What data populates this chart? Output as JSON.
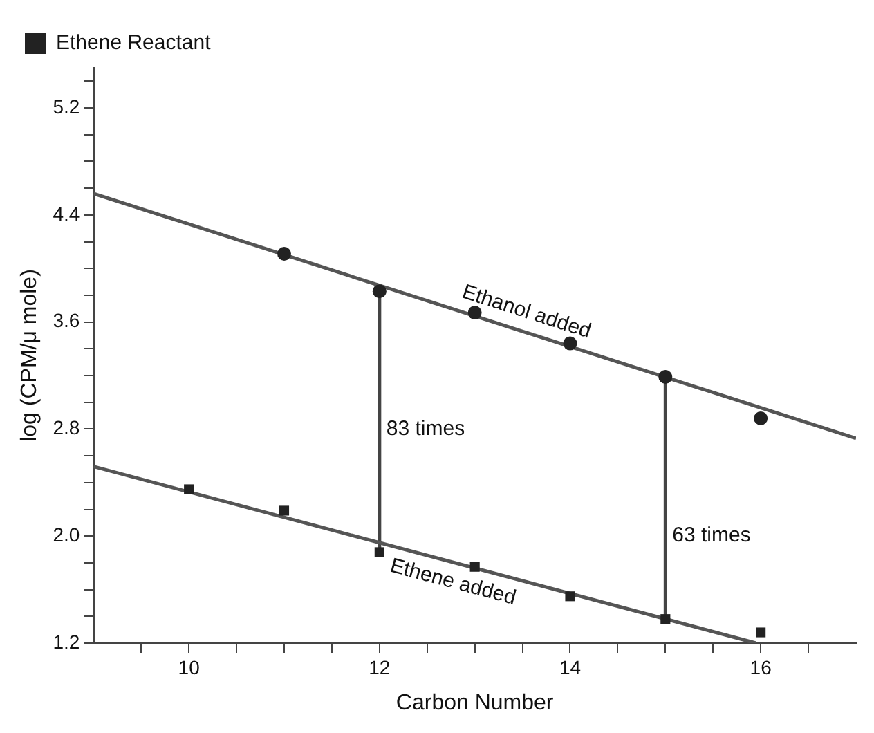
{
  "chart_data": {
    "type": "scatter",
    "xlabel": "Carbon Number",
    "ylabel": "log (CPM/μ mole)",
    "xlim": [
      9,
      17
    ],
    "ylim": [
      1.2,
      5.5
    ],
    "xticks": [
      {
        "value": 9.5,
        "label": null
      },
      10,
      {
        "value": 10.5,
        "label": null
      },
      {
        "value": 11,
        "label": null
      },
      {
        "value": 11.5,
        "label": null
      },
      12,
      {
        "value": 12.5,
        "label": null
      },
      {
        "value": 13,
        "label": null
      },
      {
        "value": 13.5,
        "label": null
      },
      14,
      {
        "value": 14.5,
        "label": null
      },
      {
        "value": 15,
        "label": null
      },
      {
        "value": 15.5,
        "label": null
      },
      16,
      {
        "value": 16.5,
        "label": null
      }
    ],
    "yticks": [
      1.2,
      {
        "value": 1.4,
        "label": null
      },
      {
        "value": 1.6,
        "label": null
      },
      {
        "value": 1.8,
        "label": null
      },
      {
        "value": 2.0,
        "label": "2.0"
      },
      {
        "value": 2.2,
        "label": null
      },
      {
        "value": 2.4,
        "label": null
      },
      {
        "value": 2.6,
        "label": null
      },
      2.8,
      {
        "value": 3.0,
        "label": null
      },
      {
        "value": 3.2,
        "label": null
      },
      {
        "value": 3.4,
        "label": null
      },
      3.6,
      {
        "value": 3.8,
        "label": null
      },
      {
        "value": 4.0,
        "label": null
      },
      {
        "value": 4.2,
        "label": null
      },
      4.4,
      {
        "value": 4.6,
        "label": null
      },
      {
        "value": 4.8,
        "label": null
      },
      {
        "value": 5.0,
        "label": null
      },
      5.2,
      {
        "value": 5.4,
        "label": null
      }
    ],
    "grid": false,
    "legend": "top left",
    "series": [
      {
        "color": "#222222",
        "marker": "circle",
        "x": [
          11,
          12,
          13,
          14,
          15,
          16
        ],
        "values": [
          4.11,
          3.83,
          3.67,
          3.44,
          3.19,
          2.88
        ]
      },
      {
        "name": "Ethene Reactant",
        "color": "#222222",
        "marker": "square",
        "x": [
          10,
          11,
          12,
          13,
          14,
          15,
          16
        ],
        "values": [
          2.35,
          2.19,
          1.88,
          1.77,
          1.55,
          1.38,
          1.28
        ]
      },
      {
        "type": "line",
        "color": "#555555",
        "line_style": "solid",
        "x": [
          9,
          17
        ],
        "values": [
          4.56,
          2.73
        ]
      },
      {
        "type": "line",
        "color": "#555555",
        "line_style": "solid",
        "x": [
          9,
          15.95
        ],
        "values": [
          2.52,
          1.2
        ]
      },
      {
        "type": "line",
        "color": "#444444",
        "line_style": "solid",
        "x": [
          12,
          12
        ],
        "values": [
          1.88,
          3.83
        ]
      },
      {
        "type": "line",
        "color": "#444444",
        "line_style": "solid",
        "x": [
          15,
          15
        ],
        "values": [
          1.38,
          3.19
        ]
      }
    ],
    "annotations": [
      "Ethanol added",
      "Ethene added",
      {
        "text": "83 times",
        "x": 12,
        "y": 2.8
      },
      {
        "text": "63 times",
        "x": 15,
        "y": 2.0
      }
    ]
  }
}
